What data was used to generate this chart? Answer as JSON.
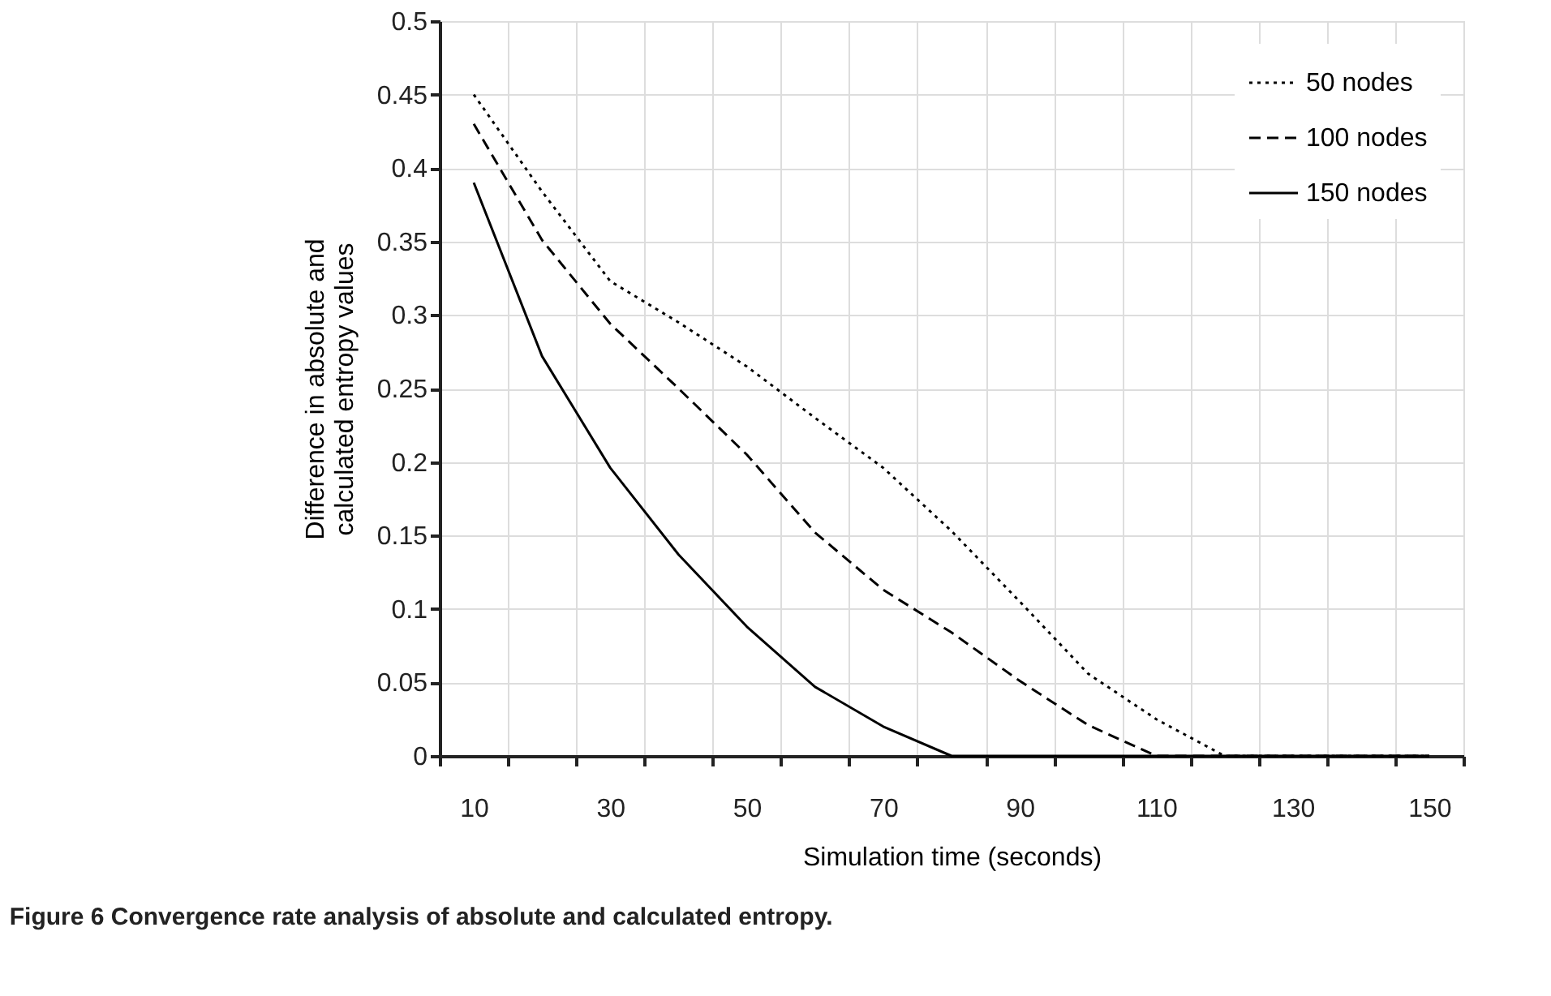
{
  "chart_data": {
    "type": "line",
    "annotations": [
      "Figure 6 Convergence rate analysis of absolute and calculated entropy."
    ],
    "xlabel": "Simulation time (seconds)",
    "ylabel": "Difference in absolute and calculated entropy values",
    "categories": [
      "10",
      null,
      "30",
      null,
      "50",
      null,
      "70",
      null,
      "90",
      null,
      "110",
      null,
      "130",
      null,
      "150"
    ],
    "series": [
      {
        "name": "50 nodes",
        "color": "#000000",
        "line_style": "dotted",
        "values": [
          0.45,
          0.384,
          0.323,
          0.295,
          0.265,
          0.23,
          0.196,
          0.153,
          0.105,
          0.056,
          0.025,
          0,
          0,
          0,
          0
        ]
      },
      {
        "name": "100 nodes",
        "color": "#000000",
        "line_style": "dashed",
        "values": [
          0.43,
          0.351,
          0.294,
          0.25,
          0.205,
          0.152,
          0.113,
          0.084,
          0.051,
          0.021,
          0,
          0,
          0,
          0,
          0
        ]
      },
      {
        "name": "150 nodes",
        "color": "#000000",
        "line_style": "solid",
        "values": [
          0.39,
          0.272,
          0.196,
          0.137,
          0.088,
          0.047,
          0.02,
          0,
          0,
          0,
          0,
          0,
          0,
          0,
          0
        ]
      }
    ],
    "ylim": [
      0,
      0.5
    ],
    "yticks": [
      0,
      0.05,
      0.1,
      0.15,
      0.2,
      0.25,
      0.3,
      0.35,
      0.4,
      0.45,
      0.5
    ],
    "grid": true,
    "legend": "top right",
    "marker": "none"
  }
}
